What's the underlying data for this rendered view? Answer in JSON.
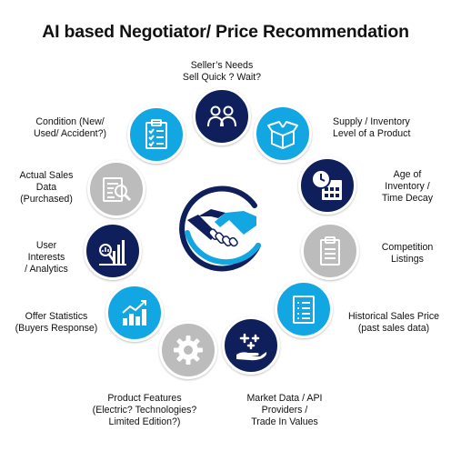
{
  "title": "AI based Negotiator/ Price Recommendation",
  "colors": {
    "navy": "#0f1f5c",
    "blue": "#12a6e3",
    "gray": "#bcbcbc",
    "white": "#ffffff"
  },
  "labels": {
    "seller_needs": [
      "Seller’s Needs",
      "Sell Quick ? Wait?"
    ],
    "supply_inventory": [
      "Supply / Inventory",
      "Level of a Product"
    ],
    "age_inventory": [
      "Age of",
      "Inventory /",
      "Time Decay"
    ],
    "competition": [
      "Competition",
      "Listings"
    ],
    "historical_sales": [
      "Historical Sales Price",
      "(past sales data)"
    ],
    "market_data": [
      "Market Data / API",
      "Providers /",
      "Trade In Values"
    ],
    "product_features": [
      "Product Features",
      "(Electric? Technologies?",
      "Limited Edition?)"
    ],
    "offer_stats": [
      "Offer Statistics",
      "(Buyers Response)"
    ],
    "user_interests": [
      "User",
      "Interests",
      "/ Analytics"
    ],
    "actual_sales": [
      "Actual Sales",
      "Data",
      "(Purchased)"
    ],
    "condition": [
      "Condition (New/",
      "Used/ Accident?)"
    ]
  },
  "icons": {
    "seller_needs": "people-icon",
    "supply_inventory": "open-box-icon",
    "age_inventory": "clock-calendar-icon",
    "competition": "clipboard-icon",
    "historical_sales": "list-document-icon",
    "market_data": "hand-plus-icon",
    "product_features": "gear-icon",
    "offer_stats": "rising-bar-chart-icon",
    "user_interests": "bar-magnifier-icon",
    "actual_sales": "document-magnifier-icon",
    "condition": "checklist-icon",
    "center": "handshake-icon"
  }
}
